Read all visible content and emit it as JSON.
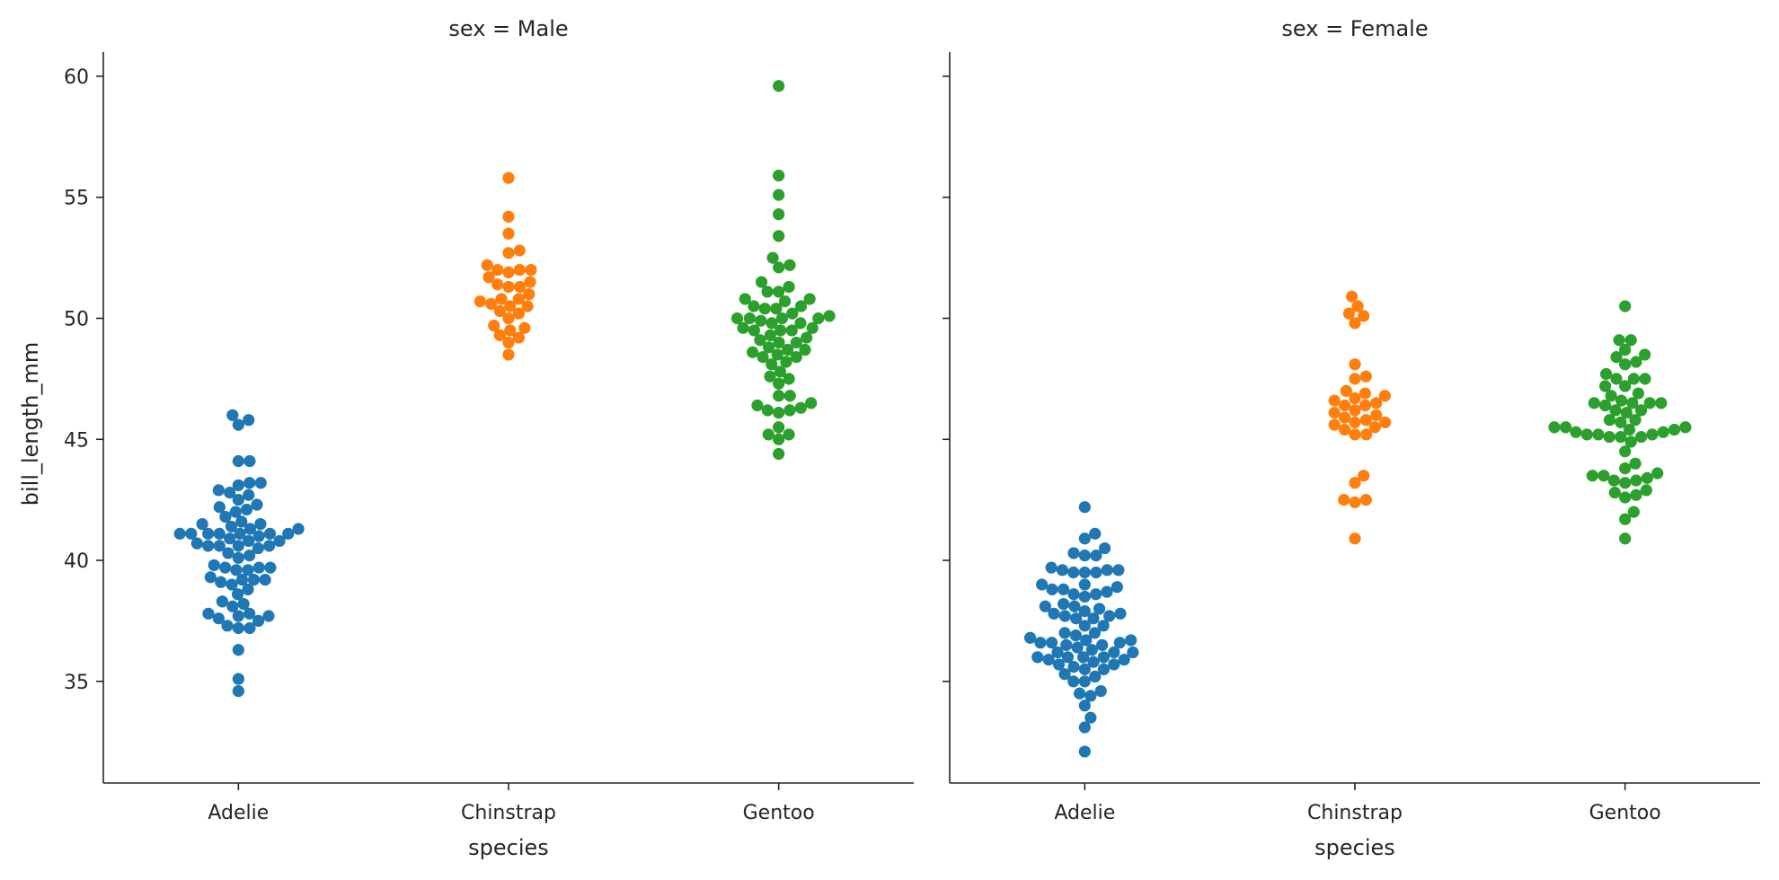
{
  "chart_data": {
    "type": "scatter",
    "subtype": "swarm",
    "facet_variable": "sex",
    "categories": [
      "Adelie",
      "Chinstrap",
      "Gentoo"
    ],
    "xlabel": "species",
    "ylabel": "bill_length_mm",
    "ylim": [
      30.8,
      61
    ],
    "yticks": [
      35,
      40,
      45,
      50,
      55,
      60
    ],
    "grid": false,
    "legend": "none",
    "colors": {
      "Adelie": "#1f77b4",
      "Chinstrap": "#ff7f0e",
      "Gentoo": "#2ca02c"
    },
    "panels": [
      {
        "title": "sex = Male",
        "series": [
          {
            "category": "Adelie",
            "values": [
              34.6,
              35.1,
              36.3,
              37.2,
              37.2,
              37.3,
              37.5,
              37.6,
              37.7,
              37.7,
              37.8,
              37.8,
              38.1,
              38.2,
              38.3,
              38.6,
              38.8,
              39.0,
              39.1,
              39.2,
              39.2,
              39.2,
              39.3,
              39.6,
              39.6,
              39.7,
              39.7,
              39.7,
              39.8,
              40.1,
              40.2,
              40.3,
              40.5,
              40.6,
              40.6,
              40.6,
              40.6,
              40.7,
              40.8,
              40.8,
              40.9,
              41.0,
              41.1,
              41.1,
              41.1,
              41.1,
              41.1,
              41.1,
              41.1,
              41.3,
              41.3,
              41.4,
              41.5,
              41.5,
              41.6,
              41.8,
              42.0,
              42.1,
              42.2,
              42.3,
              42.5,
              42.7,
              42.8,
              42.9,
              43.1,
              43.2,
              43.2,
              44.1,
              44.1,
              45.6,
              45.8,
              46.0
            ]
          },
          {
            "category": "Chinstrap",
            "values": [
              48.5,
              49.0,
              49.2,
              49.3,
              49.5,
              49.6,
              49.7,
              50.0,
              50.2,
              50.3,
              50.5,
              50.5,
              50.6,
              50.7,
              50.8,
              50.8,
              51.0,
              51.3,
              51.3,
              51.4,
              51.5,
              51.7,
              51.9,
              52.0,
              52.0,
              52.0,
              52.2,
              52.7,
              52.8,
              53.5,
              54.2,
              55.8
            ]
          },
          {
            "category": "Gentoo",
            "values": [
              44.4,
              45.0,
              45.2,
              45.2,
              45.5,
              46.1,
              46.2,
              46.2,
              46.3,
              46.4,
              46.5,
              46.8,
              46.8,
              47.3,
              47.5,
              47.6,
              47.8,
              48.1,
              48.2,
              48.4,
              48.4,
              48.5,
              48.6,
              48.7,
              48.7,
              48.8,
              49.0,
              49.0,
              49.1,
              49.2,
              49.3,
              49.5,
              49.5,
              49.5,
              49.6,
              49.6,
              49.8,
              49.8,
              49.9,
              50.0,
              50.0,
              50.0,
              50.0,
              50.1,
              50.2,
              50.4,
              50.4,
              50.5,
              50.5,
              50.7,
              50.8,
              50.8,
              51.1,
              51.1,
              51.3,
              51.5,
              52.1,
              52.2,
              52.5,
              53.4,
              54.3,
              55.1,
              55.9,
              59.6
            ]
          }
        ]
      },
      {
        "title": "sex = Female",
        "series": [
          {
            "category": "Adelie",
            "values": [
              32.1,
              33.1,
              33.5,
              34.0,
              34.4,
              34.5,
              34.6,
              35.0,
              35.0,
              35.2,
              35.3,
              35.5,
              35.5,
              35.6,
              35.7,
              35.7,
              35.8,
              35.9,
              35.9,
              36.0,
              36.0,
              36.0,
              36.0,
              36.2,
              36.2,
              36.2,
              36.3,
              36.4,
              36.5,
              36.5,
              36.6,
              36.6,
              36.6,
              36.7,
              36.7,
              36.8,
              36.9,
              37.0,
              37.0,
              37.3,
              37.3,
              37.6,
              37.6,
              37.7,
              37.7,
              37.8,
              37.8,
              37.9,
              38.0,
              38.1,
              38.1,
              38.2,
              38.5,
              38.6,
              38.6,
              38.7,
              38.8,
              38.8,
              38.9,
              39.0,
              39.0,
              39.5,
              39.5,
              39.5,
              39.6,
              39.6,
              39.6,
              39.7,
              40.2,
              40.2,
              40.3,
              40.5,
              40.9,
              41.1,
              42.2
            ]
          },
          {
            "category": "Chinstrap",
            "values": [
              40.9,
              42.4,
              42.5,
              42.5,
              43.2,
              43.5,
              45.2,
              45.2,
              45.4,
              45.5,
              45.6,
              45.7,
              45.7,
              45.8,
              45.9,
              46.0,
              46.1,
              46.2,
              46.4,
              46.4,
              46.5,
              46.6,
              46.7,
              46.8,
              46.9,
              47.0,
              47.5,
              47.6,
              48.1,
              49.8,
              50.1,
              50.2,
              50.5,
              50.9
            ]
          },
          {
            "category": "Gentoo",
            "values": [
              40.9,
              41.7,
              42.0,
              42.6,
              42.7,
              42.8,
              42.9,
              43.2,
              43.3,
              43.3,
              43.4,
              43.5,
              43.5,
              43.6,
              43.8,
              44.0,
              44.5,
              44.9,
              45.1,
              45.1,
              45.1,
              45.2,
              45.2,
              45.2,
              45.3,
              45.3,
              45.4,
              45.4,
              45.5,
              45.5,
              45.5,
              45.7,
              45.8,
              45.8,
              46.1,
              46.2,
              46.2,
              46.4,
              46.5,
              46.5,
              46.5,
              46.5,
              46.6,
              46.8,
              46.9,
              47.2,
              47.2,
              47.5,
              47.5,
              47.5,
              47.7,
              48.1,
              48.2,
              48.4,
              48.5,
              48.7,
              49.1,
              49.1,
              50.5
            ]
          }
        ]
      }
    ]
  }
}
